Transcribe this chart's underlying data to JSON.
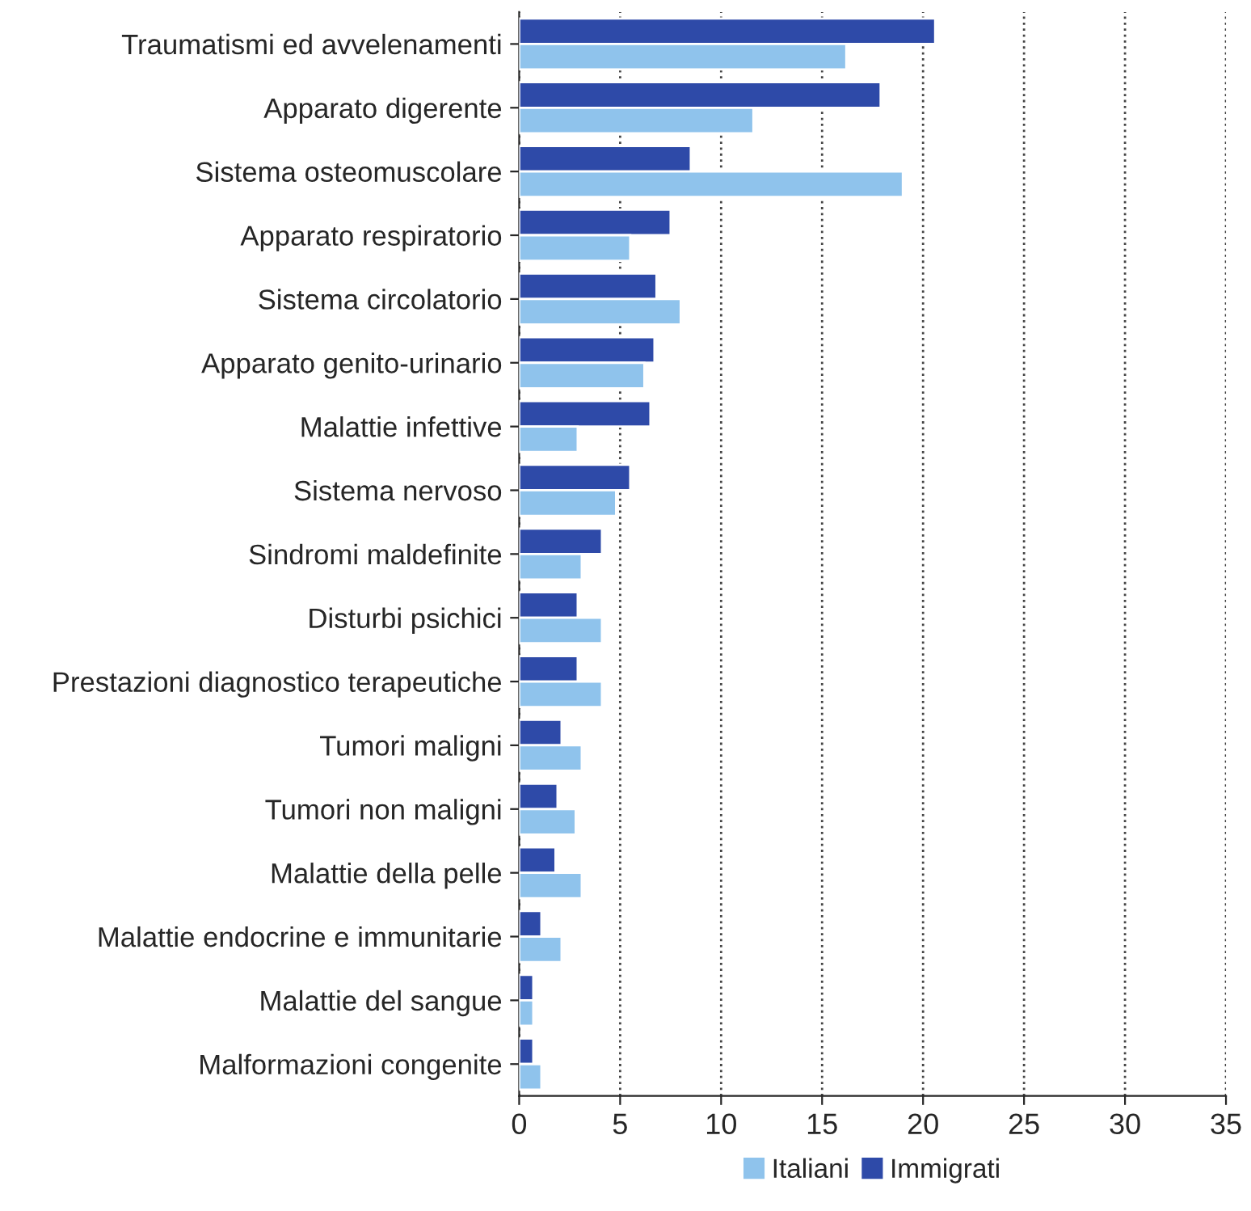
{
  "chart_data": {
    "type": "bar",
    "orientation": "horizontal",
    "categories": [
      "Traumatismi ed avvelenamenti",
      "Apparato digerente",
      "Sistema osteomuscolare",
      "Apparato respiratorio",
      "Sistema circolatorio",
      "Apparato genito-urinario",
      "Malattie infettive",
      "Sistema nervoso",
      "Sindromi maldefinite",
      "Disturbi psichici",
      "Prestazioni diagnostico terapeutiche",
      "Tumori maligni",
      "Tumori non maligni",
      "Malattie della pelle",
      "Malattie endocrine e immunitarie",
      "Malattie del sangue",
      "Malformazioni congenite"
    ],
    "series": [
      {
        "name": "Immigrati",
        "color": "#2e4aa8",
        "values": [
          20.6,
          17.9,
          8.5,
          7.5,
          6.8,
          6.7,
          6.5,
          5.5,
          4.1,
          2.9,
          2.9,
          2.1,
          1.9,
          1.8,
          1.1,
          0.7,
          0.7
        ]
      },
      {
        "name": "Italiani",
        "color": "#8fc3ec",
        "values": [
          16.2,
          11.6,
          19.0,
          5.5,
          8.0,
          6.2,
          2.9,
          4.8,
          3.1,
          4.1,
          4.1,
          3.1,
          2.8,
          3.1,
          2.1,
          0.7,
          1.1
        ]
      }
    ],
    "xlim": [
      0,
      35
    ],
    "xticks": [
      0,
      5,
      10,
      15,
      20,
      25,
      30,
      35
    ],
    "grid": "x",
    "legend": "bottom"
  }
}
